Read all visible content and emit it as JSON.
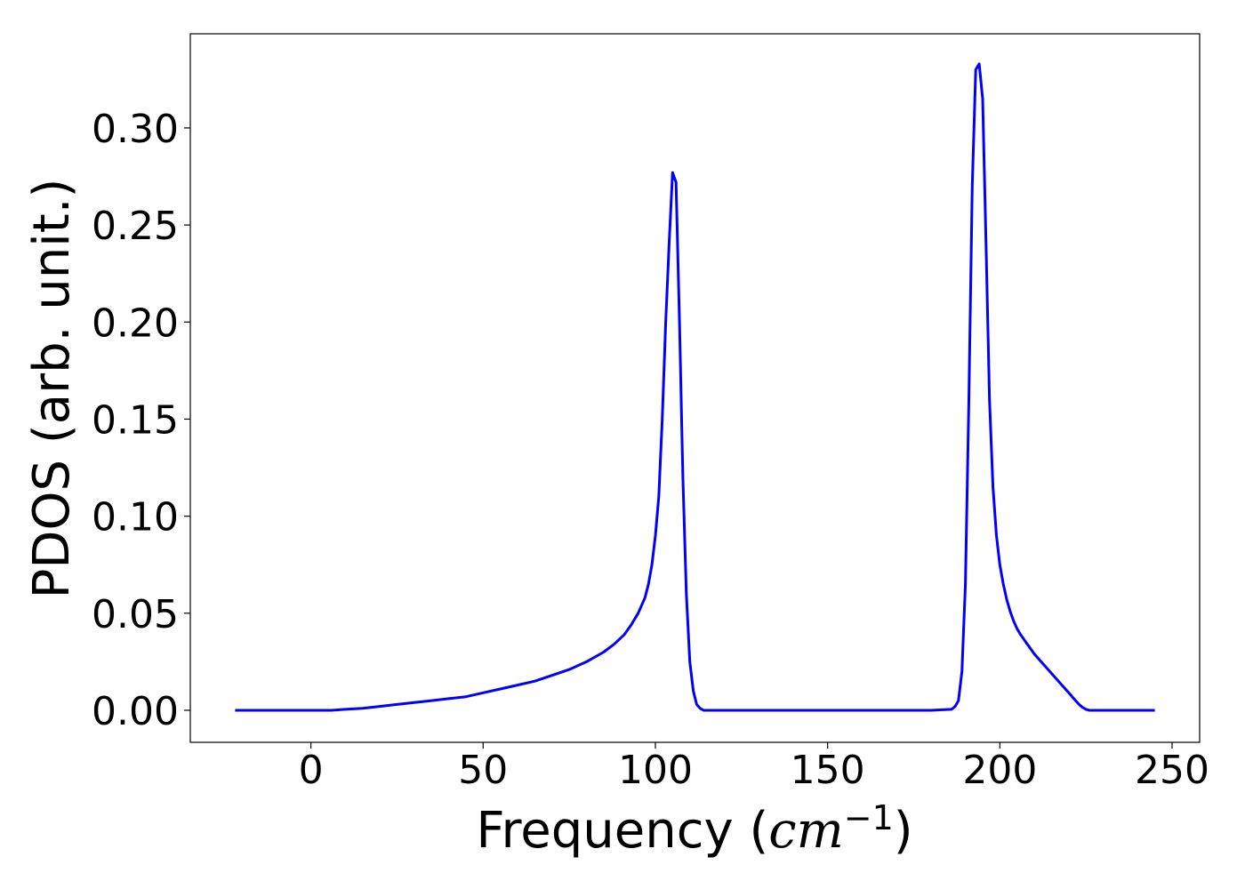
{
  "chart_data": {
    "type": "line",
    "title": "",
    "xlabel": {
      "prefix": "Frequency (",
      "unit_base": "cm",
      "unit_exponent": "−1",
      "suffix": ")"
    },
    "ylabel": "PDOS (arb. unit.)",
    "xlim": [
      -35,
      258
    ],
    "ylim": [
      -0.0165,
      0.3485
    ],
    "xticks": [
      0,
      50,
      100,
      150,
      200,
      250
    ],
    "xtick_labels": [
      "0",
      "50",
      "100",
      "150",
      "200",
      "250"
    ],
    "yticks": [
      0.0,
      0.05,
      0.1,
      0.15,
      0.2,
      0.25,
      0.3
    ],
    "ytick_labels": [
      "0.00",
      "0.05",
      "0.10",
      "0.15",
      "0.20",
      "0.25",
      "0.30"
    ],
    "grid": false,
    "legend": null,
    "series": [
      {
        "color": "#0000ff",
        "x": [
          -22,
          0,
          6,
          10,
          15,
          20,
          25,
          30,
          35,
          40,
          45,
          50,
          55,
          60,
          65,
          70,
          75,
          80,
          85,
          88,
          91,
          93,
          95,
          97,
          98,
          99,
          100,
          101,
          102,
          103,
          104,
          105,
          106,
          107,
          108,
          109,
          110,
          111,
          112,
          113,
          114,
          115,
          116,
          120,
          140,
          160,
          180,
          186,
          187,
          188,
          189,
          190,
          191,
          192,
          193,
          194,
          195,
          196,
          197,
          198,
          199,
          200,
          201,
          202,
          203,
          204,
          205,
          206,
          208,
          210,
          212,
          214,
          216,
          218,
          220,
          222,
          223,
          224,
          225,
          226,
          228,
          235,
          245
        ],
        "y": [
          0.0,
          0.0,
          0.0,
          0.0005,
          0.001,
          0.002,
          0.003,
          0.004,
          0.005,
          0.006,
          0.007,
          0.009,
          0.011,
          0.013,
          0.015,
          0.018,
          0.021,
          0.025,
          0.03,
          0.034,
          0.039,
          0.044,
          0.05,
          0.058,
          0.065,
          0.075,
          0.09,
          0.11,
          0.15,
          0.2,
          0.24,
          0.277,
          0.272,
          0.2,
          0.12,
          0.06,
          0.025,
          0.01,
          0.003,
          0.001,
          0.0,
          0.0,
          0.0,
          0.0,
          0.0,
          0.0,
          0.0,
          0.0005,
          0.002,
          0.005,
          0.02,
          0.065,
          0.16,
          0.27,
          0.33,
          0.333,
          0.315,
          0.24,
          0.16,
          0.115,
          0.09,
          0.075,
          0.065,
          0.057,
          0.051,
          0.046,
          0.042,
          0.039,
          0.034,
          0.029,
          0.025,
          0.021,
          0.017,
          0.013,
          0.009,
          0.005,
          0.003,
          0.0015,
          0.0005,
          0.0,
          0.0,
          0.0,
          0.0
        ]
      }
    ]
  }
}
